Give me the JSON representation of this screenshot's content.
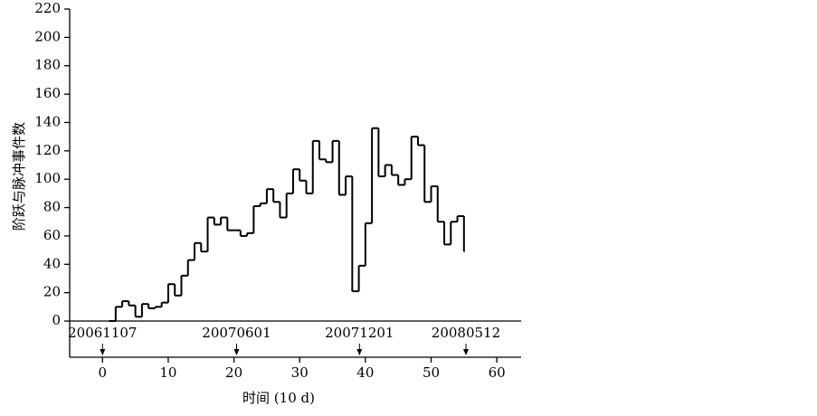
{
  "chart_data": {
    "type": "step",
    "x_label": "时间  (10 d)",
    "y_label": "阶跃与脉冲事件数",
    "x": [
      1,
      2,
      3,
      4,
      5,
      6,
      7,
      8,
      9,
      10,
      11,
      12,
      13,
      14,
      15,
      16,
      17,
      18,
      19,
      20,
      21,
      22,
      23,
      24,
      25,
      26,
      27,
      28,
      29,
      30,
      31,
      32,
      33,
      34,
      35,
      36,
      37,
      38,
      39,
      40,
      41,
      42,
      43,
      44,
      45,
      46,
      47,
      48,
      49,
      50,
      51,
      52,
      53,
      54,
      55
    ],
    "values": [
      0,
      10,
      14,
      11,
      3,
      12,
      9,
      10,
      13,
      26,
      18,
      32,
      43,
      55,
      49,
      73,
      68,
      73,
      64,
      64,
      60,
      62,
      81,
      83,
      93,
      84,
      73,
      90,
      107,
      99,
      90,
      127,
      114,
      112,
      127,
      89,
      102,
      21,
      39,
      69,
      136,
      102,
      110,
      103,
      96,
      100,
      130,
      124,
      84,
      95,
      70,
      54,
      70,
      74,
      49
    ],
    "color": "#000000",
    "xlim": [
      -5,
      63.7
    ],
    "xticks": [
      0,
      10,
      20,
      30,
      40,
      50,
      60
    ],
    "ylim": [
      0,
      220
    ],
    "yticks": [
      0,
      20,
      40,
      60,
      80,
      100,
      120,
      140,
      160,
      180,
      200,
      220
    ],
    "annotations": [
      {
        "text": "20061107",
        "x": 0
      },
      {
        "text": "20070601",
        "x": 20.4
      },
      {
        "text": "20071201",
        "x": 39.1
      },
      {
        "text": "20080512",
        "x": 55.3
      }
    ]
  }
}
